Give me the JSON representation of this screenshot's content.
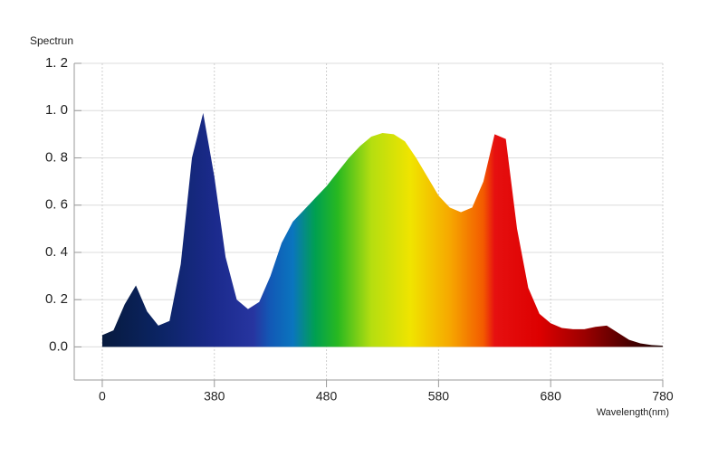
{
  "chart_data": {
    "type": "area",
    "title": "Spectrun",
    "x_label": "Wavelength(nm)",
    "x": [
      280,
      290,
      300,
      310,
      320,
      330,
      340,
      350,
      360,
      370,
      380,
      390,
      400,
      410,
      420,
      430,
      440,
      450,
      460,
      470,
      480,
      490,
      500,
      510,
      520,
      530,
      540,
      550,
      560,
      570,
      580,
      590,
      600,
      610,
      620,
      630,
      640,
      650,
      660,
      670,
      680,
      690,
      700,
      710,
      720,
      730,
      740,
      750,
      760,
      770,
      780
    ],
    "values": [
      0.05,
      0.07,
      0.18,
      0.26,
      0.15,
      0.09,
      0.11,
      0.35,
      0.8,
      0.99,
      0.72,
      0.38,
      0.2,
      0.16,
      0.19,
      0.3,
      0.44,
      0.53,
      0.58,
      0.63,
      0.68,
      0.74,
      0.8,
      0.85,
      0.89,
      0.905,
      0.9,
      0.87,
      0.8,
      0.72,
      0.64,
      0.59,
      0.57,
      0.59,
      0.7,
      0.9,
      0.88,
      0.5,
      0.25,
      0.14,
      0.1,
      0.08,
      0.075,
      0.075,
      0.085,
      0.09,
      0.06,
      0.03,
      0.015,
      0.008,
      0.005
    ],
    "xlim": [
      255,
      780
    ],
    "ylim": [
      -0.14,
      1.2
    ],
    "xticks": [
      {
        "value": 280,
        "label": "0"
      },
      380,
      480,
      580,
      680,
      780
    ],
    "yticks": [
      {
        "value": 0,
        "label": "0.0"
      },
      {
        "value": 0.2,
        "label": "0. 2"
      },
      {
        "value": 0.4,
        "label": "0. 4"
      },
      {
        "value": 0.6,
        "label": "0. 6"
      },
      {
        "value": 0.8,
        "label": "0. 8"
      },
      {
        "value": 1,
        "label": "1. 0"
      },
      {
        "value": 1.2,
        "label": "1. 2"
      }
    ],
    "grid": true
  }
}
